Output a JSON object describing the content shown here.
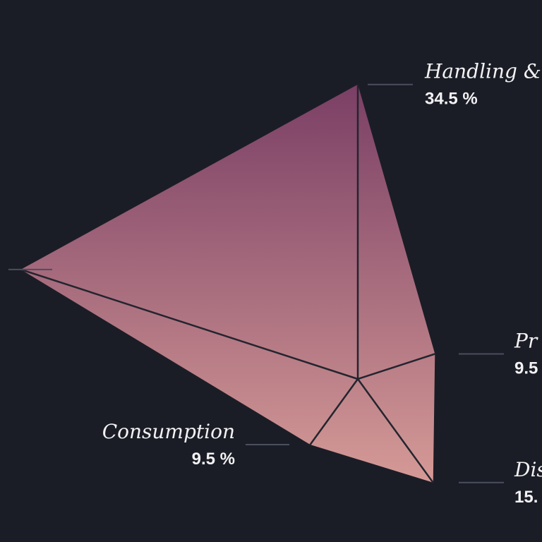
{
  "chart_data": {
    "type": "radar",
    "title": "",
    "categories": [
      "Handling &",
      "Pr",
      "Dis",
      "Consumption",
      ""
    ],
    "values": [
      34.5,
      9.5,
      15,
      9.5,
      41.5
    ],
    "value_labels": [
      "34.5 %",
      "9.5",
      "15.",
      "9.5 %",
      ""
    ],
    "rmax": 41.5,
    "grid": false,
    "legend": "none",
    "colors": {
      "top": "#7a3f65",
      "bottom": "#d59a96",
      "background": "#1b1d26",
      "spokes": "#23252f",
      "leaders": "#4b4e5c"
    }
  }
}
